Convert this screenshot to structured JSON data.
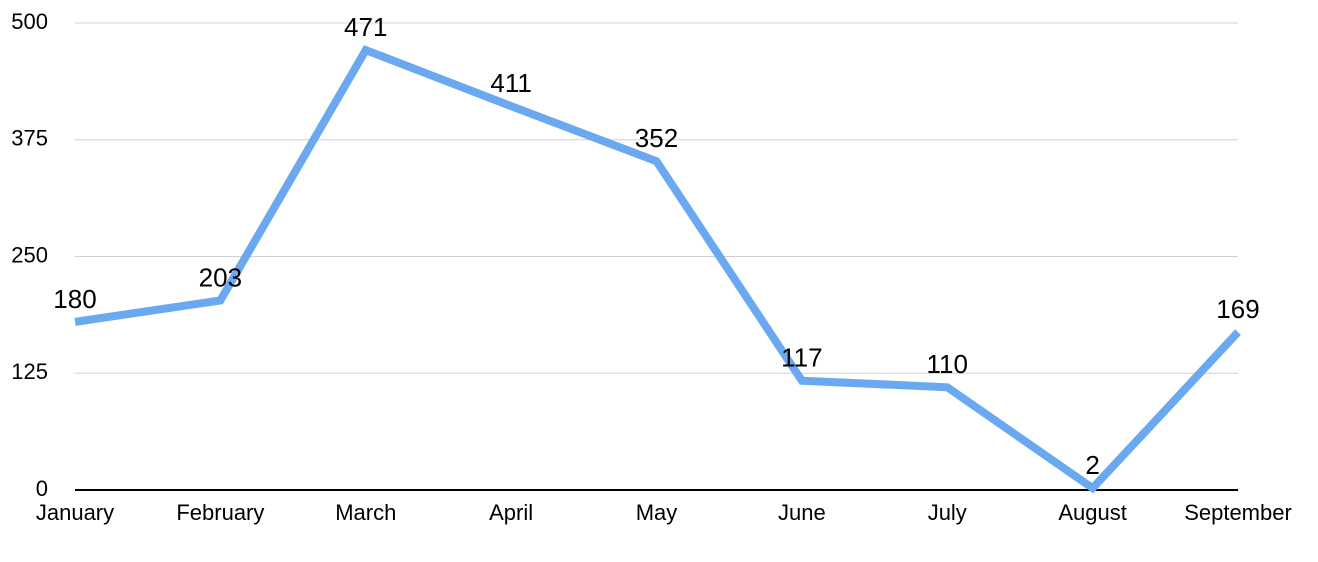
{
  "chart_data": {
    "type": "line",
    "categories": [
      "January",
      "February",
      "March",
      "April",
      "May",
      "June",
      "July",
      "August",
      "September"
    ],
    "values": [
      180,
      203,
      471,
      411,
      352,
      117,
      110,
      2,
      169
    ],
    "color": "#6aa8f0",
    "ylim": [
      0,
      500
    ],
    "yticks": [
      0,
      125,
      250,
      375,
      500
    ],
    "grid": true
  }
}
